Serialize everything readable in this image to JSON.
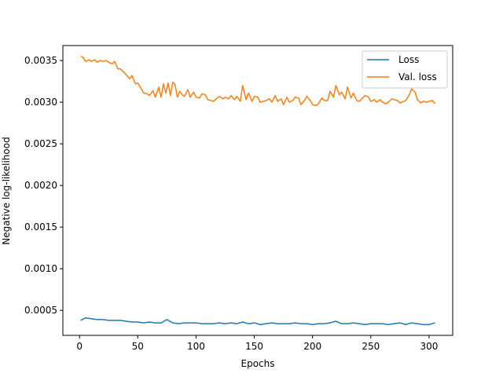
{
  "chart_data": {
    "type": "line",
    "title": "",
    "xlabel": "Epochs",
    "ylabel": "Negative log-likelihood",
    "xlim": [
      -14.3,
      320.3
    ],
    "ylim": [
      0.0002,
      0.00368
    ],
    "xticks": [
      0,
      50,
      100,
      150,
      200,
      250,
      300
    ],
    "xtick_labels": [
      "0",
      "50",
      "100",
      "150",
      "200",
      "250",
      "300"
    ],
    "yticks": [
      0.0005,
      0.001,
      0.0015,
      0.002,
      0.0025,
      0.003,
      0.0035
    ],
    "ytick_labels": [
      "0.0005",
      "0.0010",
      "0.0015",
      "0.0020",
      "0.0025",
      "0.0030",
      "0.0035"
    ],
    "grid": false,
    "legend_position": "top-right",
    "series": [
      {
        "name": "Loss",
        "color": "#1f77b4",
        "x": [
          1,
          5,
          10,
          15,
          20,
          25,
          30,
          35,
          40,
          45,
          50,
          55,
          60,
          65,
          70,
          75,
          80,
          85,
          90,
          95,
          100,
          105,
          110,
          115,
          120,
          125,
          130,
          135,
          140,
          145,
          150,
          155,
          160,
          165,
          170,
          175,
          180,
          185,
          190,
          195,
          200,
          205,
          210,
          215,
          220,
          225,
          230,
          235,
          240,
          245,
          250,
          255,
          260,
          265,
          270,
          275,
          280,
          285,
          290,
          295,
          300,
          305
        ],
        "values": [
          0.00038,
          0.00041,
          0.0004,
          0.00039,
          0.00039,
          0.00038,
          0.00038,
          0.00038,
          0.00037,
          0.00036,
          0.00036,
          0.00035,
          0.00036,
          0.00035,
          0.00035,
          0.00039,
          0.00035,
          0.00034,
          0.00035,
          0.00035,
          0.00035,
          0.00034,
          0.00034,
          0.00034,
          0.00035,
          0.00034,
          0.00035,
          0.00034,
          0.00036,
          0.00034,
          0.00035,
          0.00033,
          0.00034,
          0.00035,
          0.00034,
          0.00034,
          0.00034,
          0.00035,
          0.00034,
          0.00034,
          0.00033,
          0.00034,
          0.00034,
          0.00035,
          0.00037,
          0.00034,
          0.00034,
          0.00035,
          0.00034,
          0.00033,
          0.00034,
          0.00034,
          0.00034,
          0.00033,
          0.00034,
          0.00035,
          0.00033,
          0.00035,
          0.00034,
          0.00033,
          0.00033,
          0.00035
        ]
      },
      {
        "name": "Val. loss",
        "color": "#ff7f0e",
        "x": [
          1,
          3,
          5,
          8,
          10,
          13,
          15,
          18,
          20,
          23,
          25,
          28,
          30,
          33,
          35,
          38,
          40,
          43,
          45,
          48,
          50,
          53,
          55,
          58,
          60,
          63,
          65,
          68,
          70,
          72,
          74,
          76,
          78,
          80,
          82,
          84,
          86,
          88,
          90,
          93,
          95,
          98,
          100,
          103,
          105,
          108,
          110,
          113,
          115,
          118,
          120,
          123,
          125,
          128,
          130,
          133,
          135,
          138,
          140,
          143,
          145,
          148,
          150,
          153,
          155,
          158,
          160,
          163,
          165,
          168,
          170,
          173,
          175,
          178,
          180,
          183,
          185,
          188,
          190,
          193,
          195,
          198,
          200,
          203,
          205,
          208,
          210,
          213,
          215,
          218,
          220,
          223,
          225,
          228,
          230,
          233,
          235,
          238,
          240,
          243,
          245,
          248,
          250,
          253,
          255,
          258,
          260,
          263,
          265,
          268,
          270,
          273,
          275,
          278,
          280,
          283,
          285,
          288,
          290,
          293,
          295,
          298,
          300,
          303,
          305
        ],
        "values": [
          0.00355,
          0.00354,
          0.00349,
          0.00351,
          0.00349,
          0.00351,
          0.00348,
          0.0035,
          0.00349,
          0.0035,
          0.00348,
          0.00346,
          0.00349,
          0.0034,
          0.0034,
          0.00336,
          0.00333,
          0.00328,
          0.00332,
          0.00322,
          0.00323,
          0.00316,
          0.00311,
          0.0031,
          0.00308,
          0.00314,
          0.00306,
          0.00318,
          0.00306,
          0.00322,
          0.00311,
          0.00323,
          0.00308,
          0.00324,
          0.00321,
          0.00306,
          0.00313,
          0.00309,
          0.00307,
          0.00315,
          0.00306,
          0.00312,
          0.00306,
          0.00305,
          0.0031,
          0.00309,
          0.00303,
          0.00302,
          0.00301,
          0.00305,
          0.00307,
          0.00304,
          0.00306,
          0.00304,
          0.00308,
          0.00303,
          0.00307,
          0.00301,
          0.0032,
          0.00303,
          0.00311,
          0.00301,
          0.00307,
          0.00306,
          0.003,
          0.00301,
          0.00302,
          0.00304,
          0.003,
          0.00308,
          0.00301,
          0.00304,
          0.00297,
          0.00306,
          0.003,
          0.00302,
          0.00306,
          0.00305,
          0.00297,
          0.00302,
          0.00307,
          0.00302,
          0.00297,
          0.00296,
          0.00298,
          0.00305,
          0.00302,
          0.00302,
          0.00313,
          0.00306,
          0.0032,
          0.00309,
          0.00312,
          0.00304,
          0.00318,
          0.00305,
          0.00311,
          0.00302,
          0.00301,
          0.00305,
          0.00308,
          0.00306,
          0.00301,
          0.00303,
          0.003,
          0.00303,
          0.003,
          0.00298,
          0.003,
          0.00304,
          0.00303,
          0.00302,
          0.00299,
          0.00301,
          0.00302,
          0.00309,
          0.00316,
          0.00312,
          0.00303,
          0.00299,
          0.00301,
          0.003,
          0.00301,
          0.00302,
          0.00298
        ]
      }
    ]
  }
}
